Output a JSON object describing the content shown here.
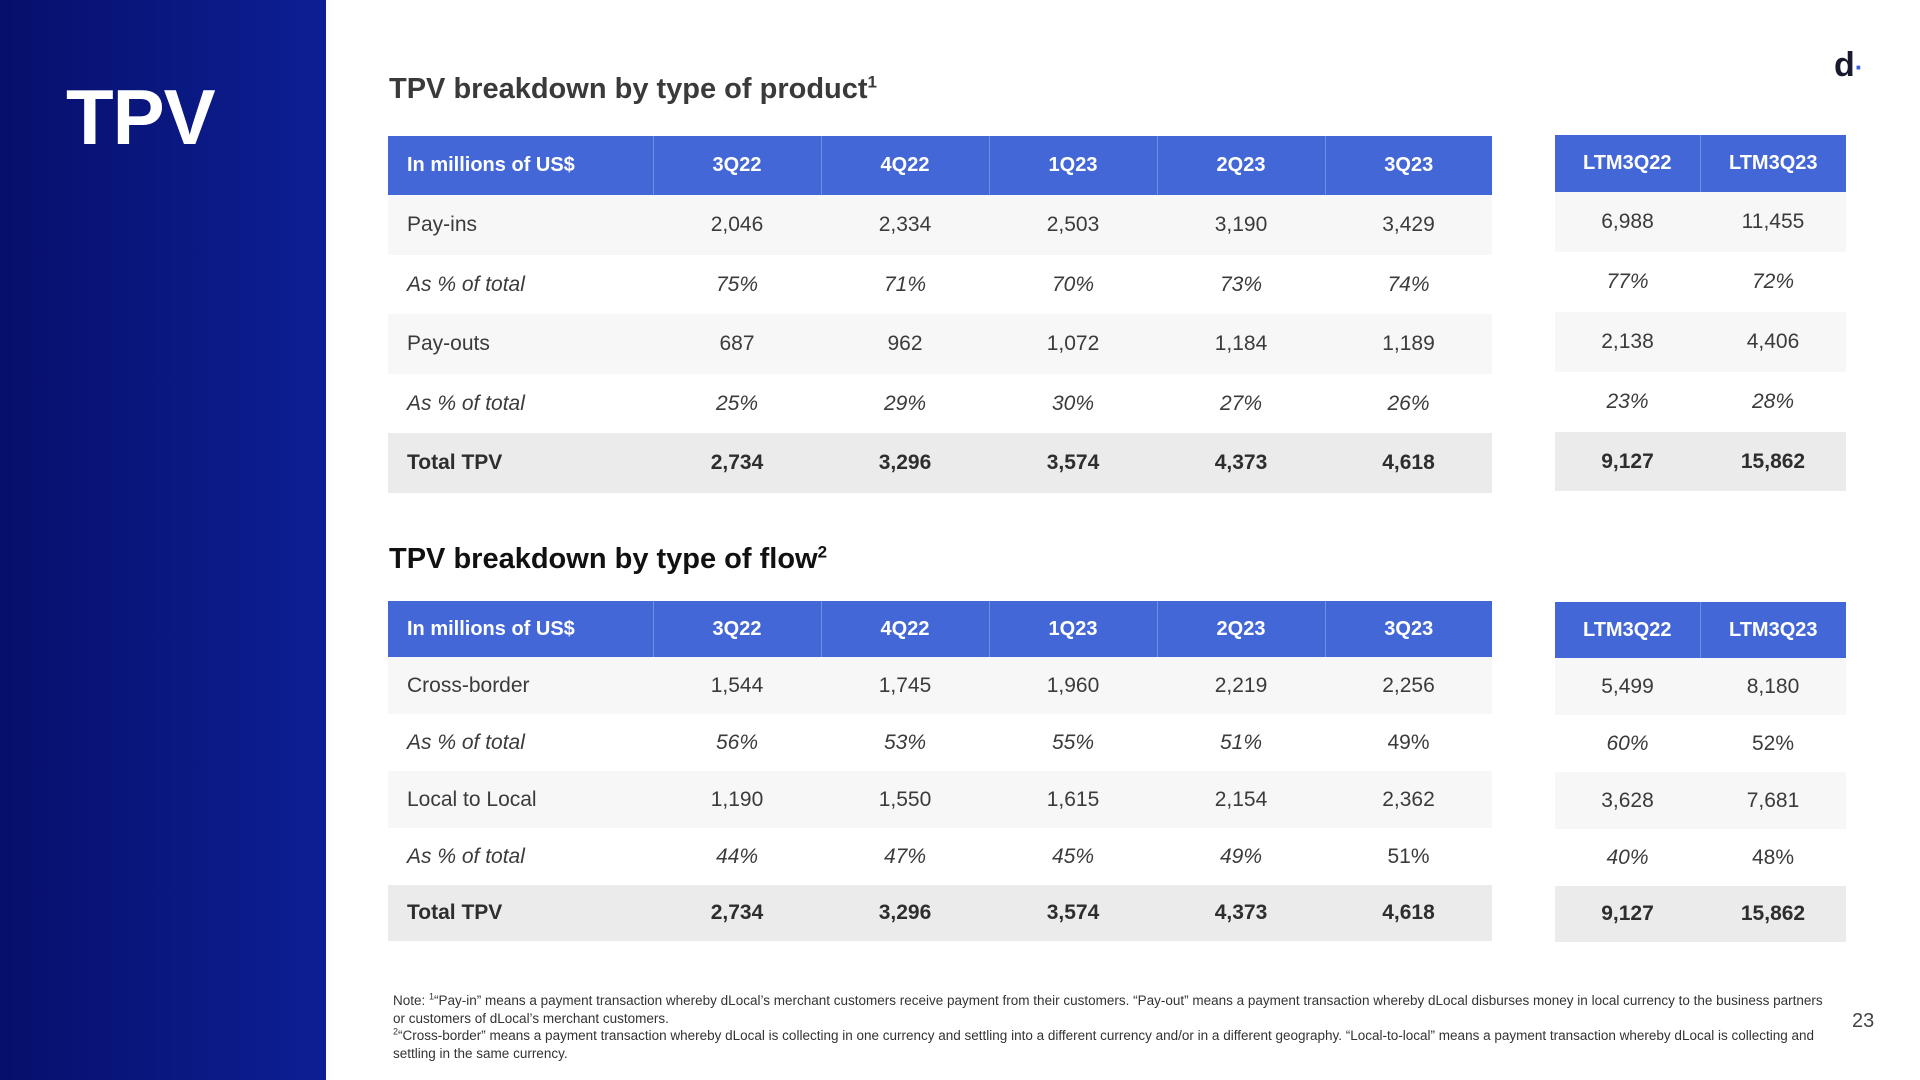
{
  "sidebar": {
    "title": "TPV"
  },
  "logo": {
    "letter": "d",
    "dot": "·"
  },
  "section1": {
    "title": "TPV breakdown by type of product",
    "sup": "1",
    "header": [
      "In millions of US$",
      "3Q22",
      "4Q22",
      "1Q23",
      "2Q23",
      "3Q23"
    ],
    "rows": [
      [
        "Pay-ins",
        "2,046",
        "2,334",
        "2,503",
        "3,190",
        "3,429"
      ],
      [
        "As % of total",
        "75%",
        "71%",
        "70%",
        "73%",
        "74%"
      ],
      [
        "Pay-outs",
        "687",
        "962",
        "1,072",
        "1,184",
        "1,189"
      ],
      [
        "As % of total",
        "25%",
        "29%",
        "30%",
        "27%",
        "26%"
      ],
      [
        "Total TPV",
        "2,734",
        "3,296",
        "3,574",
        "4,373",
        "4,618"
      ]
    ],
    "ltm_header": [
      "LTM3Q22",
      "LTM3Q23"
    ],
    "ltm_rows": [
      [
        "6,988",
        "11,455"
      ],
      [
        "77%",
        "72%"
      ],
      [
        "2,138",
        "4,406"
      ],
      [
        "23%",
        "28%"
      ],
      [
        "9,127",
        "15,862"
      ]
    ]
  },
  "section2": {
    "title": "TPV breakdown by type of flow",
    "sup": "2",
    "header": [
      "In millions of US$",
      "3Q22",
      "4Q22",
      "1Q23",
      "2Q23",
      "3Q23"
    ],
    "rows": [
      [
        "Cross-border",
        "1,544",
        "1,745",
        "1,960",
        "2,219",
        "2,256"
      ],
      [
        "As % of total",
        "56%",
        "53%",
        "55%",
        "51%",
        "49%"
      ],
      [
        "Local to Local",
        "1,190",
        "1,550",
        "1,615",
        "2,154",
        "2,362"
      ],
      [
        "As % of total",
        "44%",
        "47%",
        "45%",
        "49%",
        "51%"
      ],
      [
        "Total TPV",
        "2,734",
        "3,296",
        "3,574",
        "4,373",
        "4,618"
      ]
    ],
    "ltm_header": [
      "LTM3Q22",
      "LTM3Q23"
    ],
    "ltm_rows": [
      [
        "5,499",
        "8,180"
      ],
      [
        "60%",
        "52%"
      ],
      [
        "3,628",
        "7,681"
      ],
      [
        "40%",
        "48%"
      ],
      [
        "9,127",
        "15,862"
      ]
    ]
  },
  "footnote": {
    "prefix": "Note: ",
    "sup1": "1",
    "line1": "“Pay-in” means a payment transaction whereby dLocal’s merchant customers receive payment from their customers. “Pay-out” means a payment transaction whereby dLocal disburses money in local currency to the business partners or customers of dLocal’s merchant customers.",
    "sup2": "2",
    "line2": "“Cross-border” means a payment transaction whereby dLocal is collecting in one currency and settling into a different currency and/or in a different geography. “Local-to-local” means a payment transaction whereby dLocal is collecting and settling in the same currency."
  },
  "page_number": "23"
}
